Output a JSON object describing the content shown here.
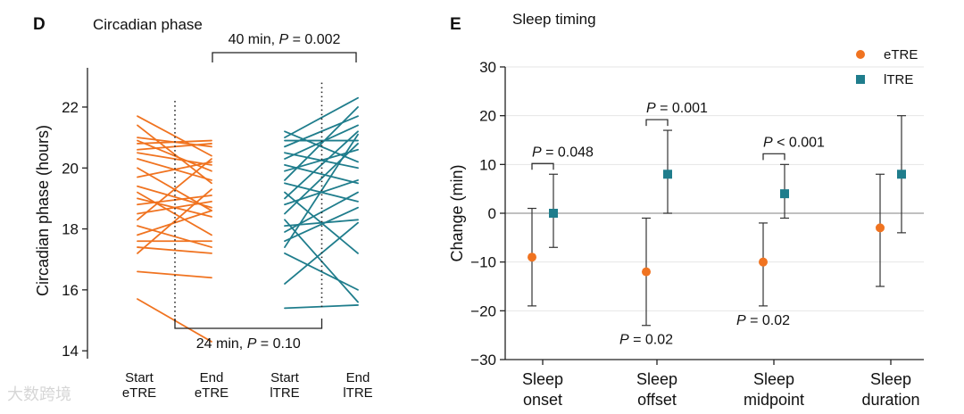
{
  "chart_data": [
    {
      "panel": "D",
      "type": "line",
      "title": "Circadian phase",
      "ylabel": "Circadian phase (hours)",
      "ylim": [
        13.8,
        23.2
      ],
      "yticks": [
        14,
        16,
        18,
        20,
        22
      ],
      "categories": [
        "Start eTRE",
        "End eTRE",
        "Start lTRE",
        "End lTRE"
      ],
      "category_lines": [
        [
          "Start",
          "eTRE"
        ],
        [
          "End",
          "eTRE"
        ],
        [
          "Start",
          "lTRE"
        ],
        [
          "End",
          "lTRE"
        ]
      ],
      "mean_lines": [
        {
          "name": "eTRE",
          "range": [
            14.9,
            22.2
          ]
        },
        {
          "name": "lTRE",
          "range": [
            15.4,
            22.8
          ]
        }
      ],
      "series": [
        {
          "name": "eTRE",
          "color": "#f07320",
          "from": "Start eTRE",
          "to": "End eTRE",
          "pairs": [
            [
              21.7,
              20.4
            ],
            [
              21.4,
              19.5
            ],
            [
              21.0,
              20.7
            ],
            [
              20.9,
              19.9
            ],
            [
              20.8,
              20.9
            ],
            [
              20.6,
              20.8
            ],
            [
              20.5,
              20.1
            ],
            [
              20.3,
              19.6
            ],
            [
              20.0,
              18.6
            ],
            [
              19.7,
              20.2
            ],
            [
              19.4,
              18.7
            ],
            [
              19.2,
              17.8
            ],
            [
              19.0,
              18.4
            ],
            [
              18.8,
              19.1
            ],
            [
              18.5,
              18.9
            ],
            [
              18.3,
              20.3
            ],
            [
              18.1,
              17.4
            ],
            [
              17.8,
              18.6
            ],
            [
              17.6,
              17.6
            ],
            [
              17.4,
              17.2
            ],
            [
              17.2,
              19.3
            ],
            [
              16.6,
              16.4
            ],
            [
              15.7,
              14.3
            ]
          ]
        },
        {
          "name": "lTRE",
          "color": "#1f7d8c",
          "from": "Start lTRE",
          "to": "End lTRE",
          "pairs": [
            [
              21.2,
              20.2
            ],
            [
              21.0,
              22.3
            ],
            [
              20.9,
              20.9
            ],
            [
              20.7,
              21.7
            ],
            [
              20.5,
              20.0
            ],
            [
              20.3,
              21.4
            ],
            [
              20.1,
              19.5
            ],
            [
              19.9,
              20.6
            ],
            [
              19.6,
              22.0
            ],
            [
              19.5,
              18.9
            ],
            [
              19.2,
              17.2
            ],
            [
              19.0,
              21.2
            ],
            [
              18.8,
              19.6
            ],
            [
              18.5,
              20.8
            ],
            [
              18.3,
              15.6
            ],
            [
              18.1,
              18.3
            ],
            [
              17.9,
              19.2
            ],
            [
              17.6,
              18.7
            ],
            [
              17.4,
              21.1
            ],
            [
              17.2,
              16.0
            ],
            [
              16.2,
              18.2
            ],
            [
              15.4,
              15.5
            ]
          ]
        }
      ],
      "brackets": [
        {
          "between": [
            "Start eTRE",
            "End lTRE"
          ],
          "which": "eTRE-vs-lTRE start",
          "label": "24 min, P = 0.10",
          "label_prefix": "24 min, ",
          "label_p": "P",
          "label_value": " = 0.10",
          "position": "bottom"
        },
        {
          "between": [
            "End eTRE",
            "End lTRE"
          ],
          "which": "end comparison",
          "label": "40 min, P = 0.002",
          "label_prefix": "40 min, ",
          "label_p": "P",
          "label_value": " = 0.002",
          "position": "top"
        }
      ]
    },
    {
      "panel": "E",
      "type": "scatter",
      "title": "Sleep timing",
      "ylabel": "Change (min)",
      "ylim": [
        -30,
        30
      ],
      "yticks": [
        30,
        20,
        10,
        0,
        -10,
        -20,
        -30
      ],
      "grid": true,
      "categories": [
        "Sleep onset",
        "Sleep offset",
        "Sleep midpoint",
        "Sleep duration"
      ],
      "category_lines": [
        [
          "Sleep",
          "onset"
        ],
        [
          "Sleep",
          "offset"
        ],
        [
          "Sleep",
          "midpoint"
        ],
        [
          "Sleep",
          "duration"
        ]
      ],
      "legend": {
        "placement": "top-right",
        "entries": [
          {
            "name": "eTRE",
            "color": "#f07320",
            "marker": "circle"
          },
          {
            "name": "lTRE",
            "color": "#1f7d8c",
            "marker": "square"
          }
        ]
      },
      "series": [
        {
          "name": "eTRE",
          "color": "#f07320",
          "marker": "circle",
          "points": [
            {
              "mean": -9,
              "low": -19,
              "high": 1
            },
            {
              "mean": -12,
              "low": -23,
              "high": -1
            },
            {
              "mean": -10,
              "low": -19,
              "high": -2
            },
            {
              "mean": -3,
              "low": -15,
              "high": 8
            }
          ]
        },
        {
          "name": "lTRE",
          "color": "#1f7d8c",
          "marker": "square",
          "points": [
            {
              "mean": 0,
              "low": -7,
              "high": 8
            },
            {
              "mean": 8,
              "low": 0,
              "high": 17
            },
            {
              "mean": 4,
              "low": -1,
              "high": 10
            },
            {
              "mean": 8,
              "low": -4,
              "high": 20
            }
          ]
        }
      ],
      "brackets": [
        {
          "category": "Sleep onset",
          "label": "P = 0.048",
          "label_p": "P",
          "label_value": " = 0.048"
        },
        {
          "category": "Sleep offset",
          "label": "P = 0.001",
          "label_p": "P",
          "label_value": " = 0.001"
        },
        {
          "category": "Sleep midpoint",
          "label": "P < 0.001",
          "label_p": "P",
          "label_value": " < 0.001"
        }
      ],
      "annotations": [
        {
          "category": "Sleep offset",
          "label": "P = 0.02",
          "label_p": "P",
          "label_value": " = 0.02"
        },
        {
          "category": "Sleep midpoint",
          "label": "P = 0.02",
          "label_p": "P",
          "label_value": " = 0.02"
        }
      ]
    }
  ],
  "watermark": "大数跨境"
}
